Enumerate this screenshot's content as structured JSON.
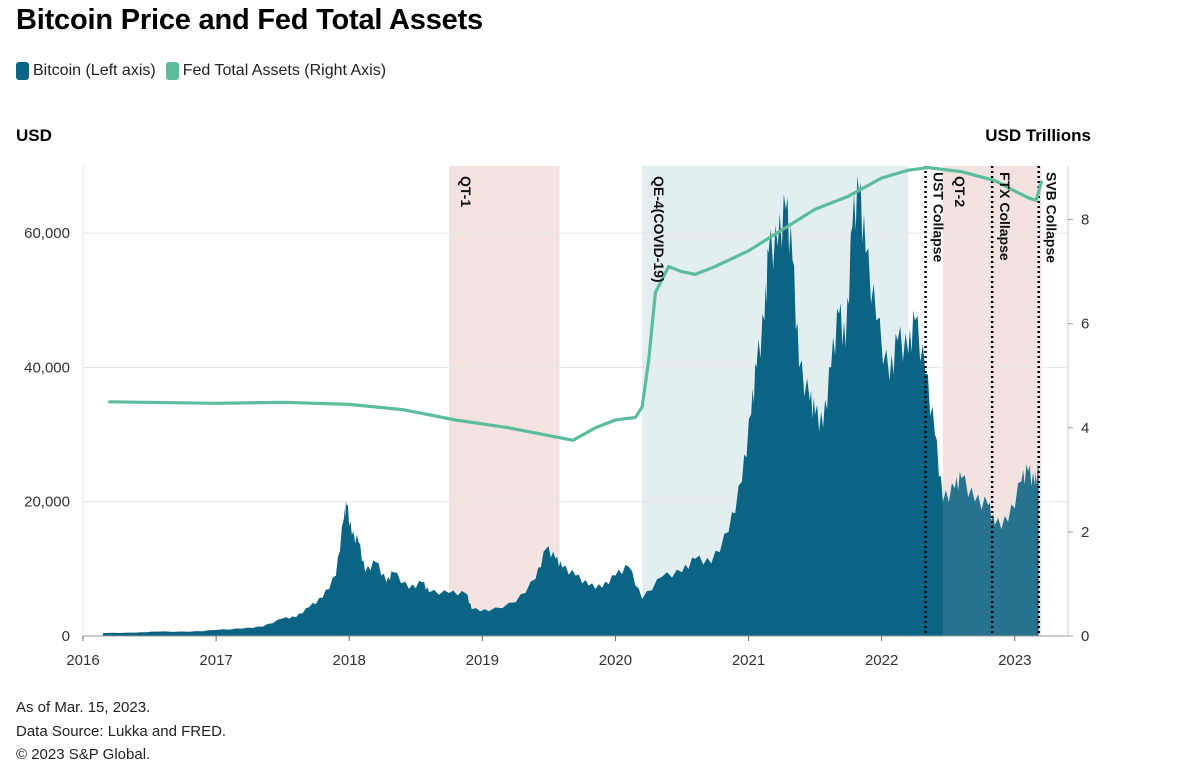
{
  "title": "Bitcoin Price and Fed Total Assets",
  "legend": [
    {
      "label": "Bitcoin (Left axis)",
      "color": "#0b6483"
    },
    {
      "label": "Fed Total Assets (Right Axis)",
      "color": "#5bbd9b"
    }
  ],
  "left_axis_unit": "USD",
  "right_axis_unit": "USD Trillions",
  "footer": {
    "as_of": "As of Mar. 15, 2023.",
    "source": "Data Source: Lukka and FRED.",
    "copyright": "© 2023 S&P Global."
  },
  "chart_data": {
    "type": "area",
    "title": "Bitcoin Price and Fed Total Assets",
    "x_range": [
      2016.0,
      2023.4
    ],
    "x_ticks": [
      2016,
      2017,
      2018,
      2019,
      2020,
      2021,
      2022,
      2023
    ],
    "left_axis": {
      "label": "USD",
      "min": 0,
      "max": 70000,
      "ticks": [
        0,
        20000,
        40000,
        60000
      ],
      "tick_labels": [
        "0",
        "20,000",
        "40,000",
        "60,000"
      ]
    },
    "right_axis": {
      "label": "USD Trillions",
      "min": 0,
      "max": 9.03,
      "ticks": [
        0,
        2,
        4,
        6,
        8
      ],
      "tick_labels": [
        "0",
        "2",
        "4",
        "6",
        "8"
      ]
    },
    "grid": true,
    "colors": {
      "bitcoin": "#0b6483",
      "fed": "#5bbd9b",
      "qt": "#f3e3e1",
      "qe": "#e3eef0"
    },
    "shaded_periods": [
      {
        "label": "QT-1",
        "start": 2018.75,
        "end": 2019.58,
        "kind": "qt"
      },
      {
        "label": "QE-4(COVID-19)",
        "start": 2020.2,
        "end": 2022.2,
        "kind": "qe"
      },
      {
        "label": "QT-2",
        "start": 2022.46,
        "end": 2023.2,
        "kind": "qt"
      }
    ],
    "events": [
      {
        "label": "UST Collapse",
        "x": 2022.33
      },
      {
        "label": "FTX Collapse",
        "x": 2022.83
      },
      {
        "label": "SVB Collapse",
        "x": 2023.18
      }
    ],
    "series": [
      {
        "name": "Bitcoin (Left axis)",
        "axis": "left",
        "style": "area",
        "points": [
          [
            2016.15,
            430
          ],
          [
            2016.4,
            500
          ],
          [
            2016.55,
            650
          ],
          [
            2016.8,
            620
          ],
          [
            2017.0,
            900
          ],
          [
            2017.2,
            1100
          ],
          [
            2017.35,
            1400
          ],
          [
            2017.5,
            2600
          ],
          [
            2017.6,
            2800
          ],
          [
            2017.7,
            4300
          ],
          [
            2017.8,
            5700
          ],
          [
            2017.9,
            9000
          ],
          [
            2017.96,
            17500
          ],
          [
            2017.98,
            19500
          ],
          [
            2018.02,
            15000
          ],
          [
            2018.07,
            14000
          ],
          [
            2018.12,
            9500
          ],
          [
            2018.2,
            11000
          ],
          [
            2018.28,
            8000
          ],
          [
            2018.33,
            9500
          ],
          [
            2018.45,
            7000
          ],
          [
            2018.55,
            8000
          ],
          [
            2018.6,
            6500
          ],
          [
            2018.75,
            6400
          ],
          [
            2018.88,
            6300
          ],
          [
            2018.92,
            4000
          ],
          [
            2019.05,
            3700
          ],
          [
            2019.25,
            5000
          ],
          [
            2019.4,
            8500
          ],
          [
            2019.48,
            13000
          ],
          [
            2019.55,
            11500
          ],
          [
            2019.6,
            10200
          ],
          [
            2019.7,
            9000
          ],
          [
            2019.8,
            7500
          ],
          [
            2019.9,
            7200
          ],
          [
            2020.0,
            9000
          ],
          [
            2020.1,
            10300
          ],
          [
            2020.2,
            5500
          ],
          [
            2020.35,
            8800
          ],
          [
            2020.5,
            9500
          ],
          [
            2020.6,
            11500
          ],
          [
            2020.72,
            10800
          ],
          [
            2020.85,
            15500
          ],
          [
            2020.95,
            23000
          ],
          [
            2021.02,
            33000
          ],
          [
            2021.06,
            40000
          ],
          [
            2021.12,
            47000
          ],
          [
            2021.15,
            57000
          ],
          [
            2021.22,
            58000
          ],
          [
            2021.28,
            63500
          ],
          [
            2021.33,
            56000
          ],
          [
            2021.38,
            40000
          ],
          [
            2021.46,
            35000
          ],
          [
            2021.5,
            33000
          ],
          [
            2021.56,
            31000
          ],
          [
            2021.62,
            40000
          ],
          [
            2021.68,
            48000
          ],
          [
            2021.73,
            43000
          ],
          [
            2021.78,
            61000
          ],
          [
            2021.83,
            66000
          ],
          [
            2021.88,
            57000
          ],
          [
            2021.96,
            47000
          ],
          [
            2022.06,
            38000
          ],
          [
            2022.12,
            44000
          ],
          [
            2022.2,
            42000
          ],
          [
            2022.25,
            47000
          ],
          [
            2022.33,
            39000
          ],
          [
            2022.4,
            30000
          ],
          [
            2022.46,
            20000
          ],
          [
            2022.55,
            22000
          ],
          [
            2022.6,
            23500
          ],
          [
            2022.7,
            20000
          ],
          [
            2022.8,
            19500
          ],
          [
            2022.85,
            16500
          ],
          [
            2022.95,
            17000
          ],
          [
            2023.05,
            23000
          ],
          [
            2023.1,
            24500
          ],
          [
            2023.15,
            22500
          ],
          [
            2023.18,
            24700
          ]
        ]
      },
      {
        "name": "Fed Total Assets (Right Axis)",
        "axis": "right",
        "style": "line",
        "points": [
          [
            2016.2,
            4.5
          ],
          [
            2017.0,
            4.47
          ],
          [
            2017.5,
            4.49
          ],
          [
            2018.0,
            4.45
          ],
          [
            2018.4,
            4.35
          ],
          [
            2018.8,
            4.15
          ],
          [
            2019.2,
            4.0
          ],
          [
            2019.6,
            3.8
          ],
          [
            2019.68,
            3.76
          ],
          [
            2019.85,
            4.0
          ],
          [
            2020.0,
            4.15
          ],
          [
            2020.15,
            4.2
          ],
          [
            2020.2,
            4.4
          ],
          [
            2020.25,
            5.3
          ],
          [
            2020.3,
            6.6
          ],
          [
            2020.4,
            7.1
          ],
          [
            2020.5,
            7.0
          ],
          [
            2020.6,
            6.95
          ],
          [
            2020.75,
            7.1
          ],
          [
            2021.0,
            7.4
          ],
          [
            2021.25,
            7.8
          ],
          [
            2021.5,
            8.2
          ],
          [
            2021.75,
            8.45
          ],
          [
            2022.0,
            8.8
          ],
          [
            2022.2,
            8.95
          ],
          [
            2022.35,
            9.0
          ],
          [
            2022.6,
            8.92
          ],
          [
            2022.85,
            8.75
          ],
          [
            2023.0,
            8.55
          ],
          [
            2023.1,
            8.42
          ],
          [
            2023.16,
            8.37
          ],
          [
            2023.2,
            8.72
          ]
        ]
      }
    ]
  }
}
